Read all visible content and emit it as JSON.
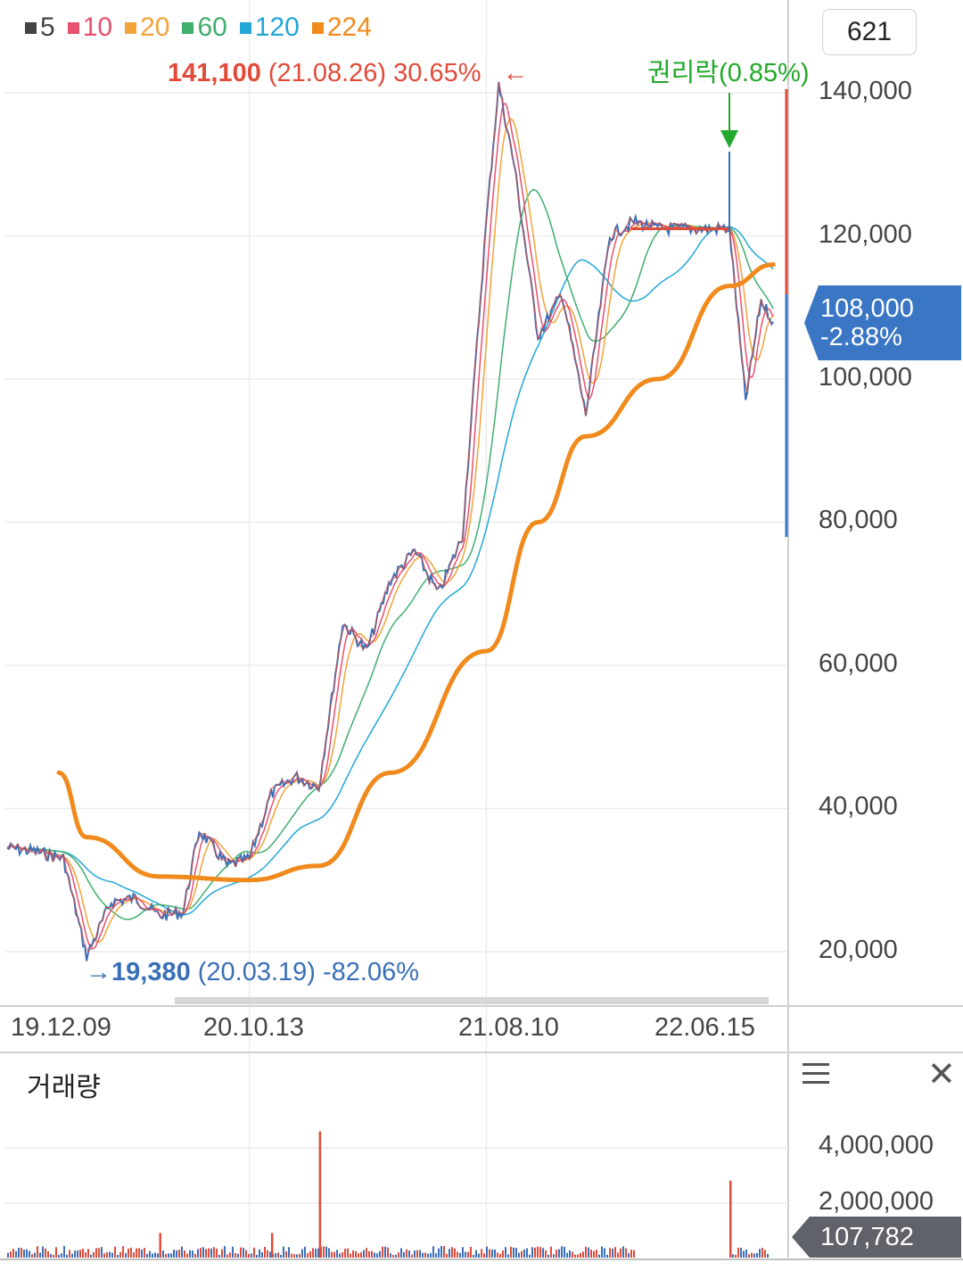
{
  "legend": [
    {
      "label": "5",
      "color": "#444444"
    },
    {
      "label": "10",
      "color": "#e8506e"
    },
    {
      "label": "20",
      "color": "#f2a33a"
    },
    {
      "label": "60",
      "color": "#3fae6e"
    },
    {
      "label": "120",
      "color": "#22a7d6"
    },
    {
      "label": "224",
      "color": "#f08a1c"
    }
  ],
  "count_box": "621",
  "annotations": {
    "high_price": "141,100",
    "high_rest": " (21.08.26) 30.65%",
    "high_arrow": "←",
    "low_arrow": "→",
    "low_price": "19,380",
    "low_rest": " (20.03.19) -82.06%",
    "event": "권리락(0.85%)"
  },
  "price_tag": {
    "price": "108,000",
    "change": "-2.88%",
    "color": "#3a76c4"
  },
  "y_ticks": [
    "140,000",
    "120,000",
    "100,000",
    "80,000",
    "60,000",
    "40,000",
    "20,000"
  ],
  "x_ticks": [
    "19.12.09",
    "20.10.13",
    "21.08.10",
    "22.06.15"
  ],
  "volume": {
    "title": "거래량",
    "ticks": [
      "4,000,000",
      "2,000,000"
    ],
    "current": "107,782"
  },
  "chart_data": {
    "type": "line",
    "y_range": [
      15000,
      150000
    ],
    "y_gridlines": [
      20000,
      40000,
      60000,
      80000,
      100000,
      120000,
      140000
    ],
    "price_series": {
      "name": "price",
      "x": [
        "19.12.09",
        "20.01.15",
        "20.02.20",
        "20.03.19",
        "20.04.20",
        "20.05.20",
        "20.06.20",
        "20.07.20",
        "20.08.10",
        "20.09.15",
        "20.10.13",
        "20.11.10",
        "20.12.10",
        "21.01.10",
        "21.02.10",
        "21.03.10",
        "21.04.10",
        "21.05.10",
        "21.06.10",
        "21.07.10",
        "21.08.10",
        "21.08.26",
        "21.09.15",
        "21.10.15",
        "21.11.15",
        "21.12.15",
        "22.01.15",
        "22.02.15",
        "22.03.15",
        "22.04.15",
        "22.05.15",
        "22.06.15",
        "22.07.05",
        "22.07.25",
        "22.08.10"
      ],
      "values": [
        34500,
        34000,
        33000,
        19380,
        27000,
        27500,
        25000,
        25500,
        37000,
        32000,
        33000,
        42000,
        44500,
        43000,
        66000,
        62000,
        72000,
        76000,
        70000,
        78000,
        122000,
        141100,
        130000,
        106000,
        112000,
        95000,
        120000,
        122000,
        121000,
        121000,
        121000,
        121000,
        97000,
        111000,
        108000
      ]
    },
    "ma224": {
      "name": "224",
      "x": [
        "19.12.09",
        "20.03.19",
        "20.06.20",
        "20.10.13",
        "21.01.10",
        "21.04.10",
        "21.08.10",
        "21.10.15",
        "21.12.15",
        "22.03.15",
        "22.06.15",
        "22.08.10"
      ],
      "values": [
        45000,
        36000,
        30500,
        30000,
        32000,
        45000,
        62000,
        80000,
        92000,
        100000,
        113000,
        116000
      ]
    },
    "volume_series": {
      "range": [
        0,
        5000000
      ],
      "spikes": [
        {
          "x": "20.06.20",
          "value": 900000
        },
        {
          "x": "20.11.10",
          "value": 900000
        },
        {
          "x": "21.01.10",
          "value": 4600000
        },
        {
          "x": "22.06.15",
          "value": 2800000
        }
      ]
    }
  }
}
